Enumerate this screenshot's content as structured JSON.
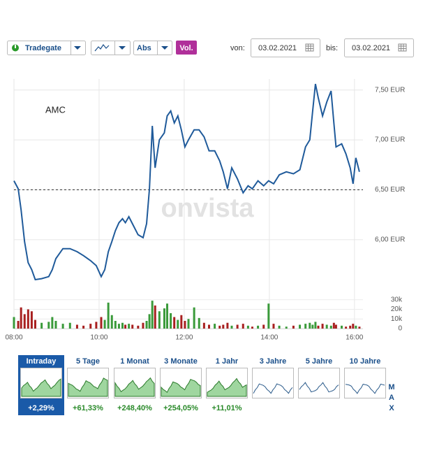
{
  "toolbar": {
    "exchange": "Tradegate",
    "mode": "Abs",
    "volume_button": "Vol.",
    "from_label": "von:",
    "from_date": "03.02.2021",
    "to_label": "bis:",
    "to_date": "03.02.2021"
  },
  "chart_data": {
    "type": "line",
    "title": "AMC",
    "watermark": "onvista",
    "color": "#1f5a9a",
    "grid": true,
    "x": [
      "08:00",
      "08:06",
      "08:10",
      "08:15",
      "08:20",
      "08:25",
      "08:30",
      "08:39",
      "08:49",
      "08:54",
      "08:59",
      "09:09",
      "09:19",
      "09:29",
      "09:38",
      "09:48",
      "09:56",
      "10:03",
      "10:08",
      "10:13",
      "10:18",
      "10:23",
      "10:28",
      "10:33",
      "10:37",
      "10:42",
      "10:47",
      "10:55",
      "11:02",
      "11:07",
      "11:11",
      "11:15",
      "11:19",
      "11:25",
      "11:32",
      "11:36",
      "11:41",
      "11:46",
      "11:51",
      "11:56",
      "12:01",
      "12:06",
      "12:14",
      "12:21",
      "12:28",
      "12:35",
      "12:43",
      "12:50",
      "12:55",
      "13:01",
      "13:07",
      "13:15",
      "13:23",
      "13:30",
      "13:36",
      "13:44",
      "13:52",
      "13:59",
      "14:06",
      "14:14",
      "14:24",
      "14:34",
      "14:43",
      "14:51",
      "14:57",
      "15:01",
      "15:05",
      "15:09",
      "15:15",
      "15:21",
      "15:27",
      "15:31",
      "15:34",
      "15:42",
      "15:48",
      "15:54",
      "15:58",
      "16:02",
      "16:07"
    ],
    "values": [
      6.59,
      6.51,
      6.3,
      5.98,
      5.77,
      5.7,
      5.6,
      5.61,
      5.63,
      5.7,
      5.81,
      5.91,
      5.91,
      5.88,
      5.84,
      5.79,
      5.74,
      5.63,
      5.7,
      5.88,
      5.98,
      6.09,
      6.17,
      6.21,
      6.17,
      6.23,
      6.16,
      6.05,
      6.02,
      6.16,
      6.51,
      7.14,
      6.72,
      7.0,
      7.07,
      7.24,
      7.29,
      7.17,
      7.24,
      7.1,
      6.93,
      7.0,
      7.1,
      7.1,
      7.03,
      6.89,
      6.89,
      6.79,
      6.68,
      6.51,
      6.72,
      6.61,
      6.47,
      6.54,
      6.51,
      6.59,
      6.54,
      6.59,
      6.56,
      6.65,
      6.68,
      6.66,
      6.7,
      6.93,
      7.0,
      7.28,
      7.56,
      7.42,
      7.24,
      7.38,
      7.49,
      7.17,
      6.93,
      6.96,
      6.86,
      6.72,
      6.56,
      6.82,
      6.68
    ],
    "xlim": [
      "08:00",
      "16:12"
    ],
    "xticks": [
      "08:00",
      "10:00",
      "12:00",
      "14:00",
      "16:00"
    ],
    "ylim": [
      5.53,
      7.61
    ],
    "yticks": [
      {
        "value": 6,
        "label": "6,00 EUR"
      },
      {
        "value": 6.5,
        "label": "6,50 EUR"
      },
      {
        "value": 7,
        "label": "7,00 EUR"
      },
      {
        "value": 7.5,
        "label": "7,50 EUR"
      }
    ],
    "reference_line": 6.5,
    "volume": {
      "type": "bar",
      "up_color": "#3a9a3a",
      "down_color": "#a82020",
      "values": [
        12000,
        8000,
        22000,
        15000,
        20000,
        18000,
        9000,
        6000,
        7000,
        12000,
        8000,
        5000,
        6000,
        4000,
        3000,
        5000,
        7000,
        12000,
        9000,
        27000,
        14000,
        8000,
        5000,
        6000,
        4000,
        5000,
        4000,
        3000,
        6000,
        8000,
        15000,
        29000,
        24000,
        18000,
        21000,
        26000,
        16000,
        12000,
        9000,
        14000,
        8000,
        10000,
        22000,
        11000,
        6000,
        4000,
        5000,
        3000,
        4000,
        6000,
        3000,
        4000,
        5000,
        3000,
        2000,
        3000,
        4000,
        26000,
        5000,
        3000,
        2000,
        3000,
        4000,
        5000,
        6000,
        4000,
        7000,
        3000,
        5000,
        4000,
        3000,
        6000,
        4000,
        3000,
        2000,
        3000,
        5000,
        3000,
        2000
      ],
      "ylim": [
        0,
        40000
      ],
      "yticks": [
        0,
        {
          "value": 10000,
          "label": "10k"
        },
        {
          "value": 20000,
          "label": "20k"
        },
        {
          "value": 30000,
          "label": "30k"
        }
      ]
    }
  },
  "periods": [
    {
      "label": "Intraday",
      "change": "+2,29%",
      "active": true
    },
    {
      "label": "5 Tage",
      "change": "+61,33%"
    },
    {
      "label": "1 Monat",
      "change": "+248,40%"
    },
    {
      "label": "3 Monate",
      "change": "+254,05%"
    },
    {
      "label": "1 Jahr",
      "change": "+11,01%"
    },
    {
      "label": "3 Jahre"
    },
    {
      "label": "5 Jahre"
    },
    {
      "label": "10 Jahre"
    }
  ],
  "max_label": "MAX"
}
